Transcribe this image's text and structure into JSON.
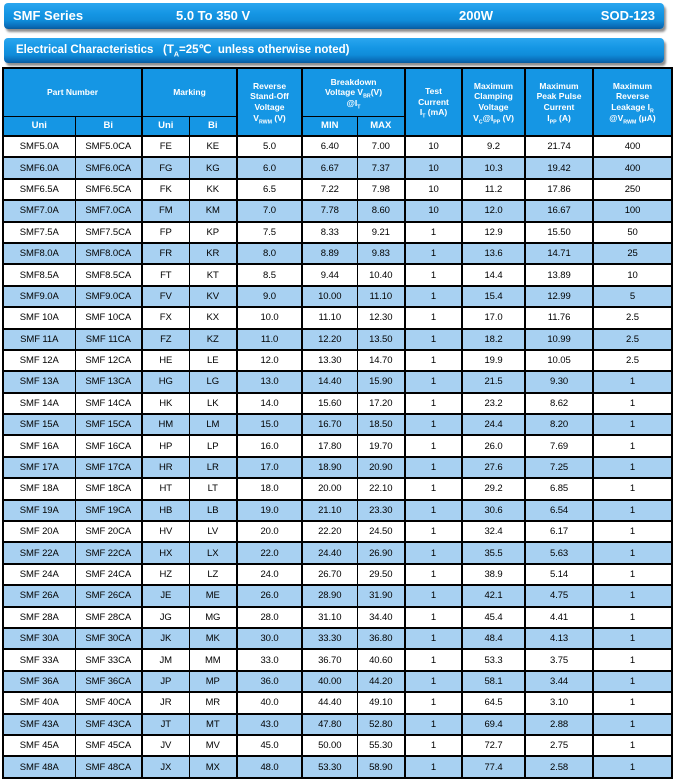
{
  "colors": {
    "accent": "#1596e4",
    "row_highlight": "#a8d1f2",
    "border": "#000000",
    "header_text": "#ffffff",
    "cell_text": "#000000"
  },
  "title_bar": {
    "series": "SMF Series",
    "voltage_range": "5.0 To 350 V",
    "power": "200W",
    "package": "SOD-123"
  },
  "section_bar": {
    "text": "Electrical Characteristics   (T_{A}=25℃  unless otherwise noted)"
  },
  "table": {
    "group_headers": {
      "part_number": "Part Number",
      "marking": "Marking",
      "vrwm": "Reverse\nStand-Off\nVoltage\nV_{RWM} (V)",
      "breakdown": "Breakdown\nVoltage V_{BR}(V)\n@I_{T}",
      "test_current": "Test\nCurrent\nI_{T} (mA)",
      "clamping": "Maximum\nClamping\nVoltage\nV_{C}@I_{PP} (V)",
      "peak_pulse": "Maximum\nPeak Pulse\nCurrent\nI_{PP} (A)",
      "leakage": "Maximum\nReverse\nLeakage I_{R}\n@V_{RWM} (μA)"
    },
    "sub_headers": {
      "part_uni": "Uni",
      "part_bi": "Bi",
      "mark_uni": "Uni",
      "mark_bi": "Bi",
      "min": "MIN",
      "max": "MAX"
    },
    "rows": [
      [
        "SMF5.0A",
        "SMF5.0CA",
        "FE",
        "KE",
        "5.0",
        "6.40",
        "7.00",
        "10",
        "9.2",
        "21.74",
        "400"
      ],
      [
        "SMF6.0A",
        "SMF6.0CA",
        "FG",
        "KG",
        "6.0",
        "6.67",
        "7.37",
        "10",
        "10.3",
        "19.42",
        "400"
      ],
      [
        "SMF6.5A",
        "SMF6.5CA",
        "FK",
        "KK",
        "6.5",
        "7.22",
        "7.98",
        "10",
        "11.2",
        "17.86",
        "250"
      ],
      [
        "SMF7.0A",
        "SMF7.0CA",
        "FM",
        "KM",
        "7.0",
        "7.78",
        "8.60",
        "10",
        "12.0",
        "16.67",
        "100"
      ],
      [
        "SMF7.5A",
        "SMF7.5CA",
        "FP",
        "KP",
        "7.5",
        "8.33",
        "9.21",
        "1",
        "12.9",
        "15.50",
        "50"
      ],
      [
        "SMF8.0A",
        "SMF8.0CA",
        "FR",
        "KR",
        "8.0",
        "8.89",
        "9.83",
        "1",
        "13.6",
        "14.71",
        "25"
      ],
      [
        "SMF8.5A",
        "SMF8.5CA",
        "FT",
        "KT",
        "8.5",
        "9.44",
        "10.40",
        "1",
        "14.4",
        "13.89",
        "10"
      ],
      [
        "SMF9.0A",
        "SMF9.0CA",
        "FV",
        "KV",
        "9.0",
        "10.00",
        "11.10",
        "1",
        "15.4",
        "12.99",
        "5"
      ],
      [
        "SMF 10A",
        "SMF 10CA",
        "FX",
        "KX",
        "10.0",
        "11.10",
        "12.30",
        "1",
        "17.0",
        "11.76",
        "2.5"
      ],
      [
        "SMF 11A",
        "SMF 11CA",
        "FZ",
        "KZ",
        "11.0",
        "12.20",
        "13.50",
        "1",
        "18.2",
        "10.99",
        "2.5"
      ],
      [
        "SMF 12A",
        "SMF 12CA",
        "HE",
        "LE",
        "12.0",
        "13.30",
        "14.70",
        "1",
        "19.9",
        "10.05",
        "2.5"
      ],
      [
        "SMF 13A",
        "SMF 13CA",
        "HG",
        "LG",
        "13.0",
        "14.40",
        "15.90",
        "1",
        "21.5",
        "9.30",
        "1"
      ],
      [
        "SMF 14A",
        "SMF 14CA",
        "HK",
        "LK",
        "14.0",
        "15.60",
        "17.20",
        "1",
        "23.2",
        "8.62",
        "1"
      ],
      [
        "SMF 15A",
        "SMF 15CA",
        "HM",
        "LM",
        "15.0",
        "16.70",
        "18.50",
        "1",
        "24.4",
        "8.20",
        "1"
      ],
      [
        "SMF 16A",
        "SMF 16CA",
        "HP",
        "LP",
        "16.0",
        "17.80",
        "19.70",
        "1",
        "26.0",
        "7.69",
        "1"
      ],
      [
        "SMF 17A",
        "SMF 17CA",
        "HR",
        "LR",
        "17.0",
        "18.90",
        "20.90",
        "1",
        "27.6",
        "7.25",
        "1"
      ],
      [
        "SMF 18A",
        "SMF 18CA",
        "HT",
        "LT",
        "18.0",
        "20.00",
        "22.10",
        "1",
        "29.2",
        "6.85",
        "1"
      ],
      [
        "SMF 19A",
        "SMF 19CA",
        "HB",
        "LB",
        "19.0",
        "21.10",
        "23.30",
        "1",
        "30.6",
        "6.54",
        "1"
      ],
      [
        "SMF 20A",
        "SMF 20CA",
        "HV",
        "LV",
        "20.0",
        "22.20",
        "24.50",
        "1",
        "32.4",
        "6.17",
        "1"
      ],
      [
        "SMF 22A",
        "SMF 22CA",
        "HX",
        "LX",
        "22.0",
        "24.40",
        "26.90",
        "1",
        "35.5",
        "5.63",
        "1"
      ],
      [
        "SMF 24A",
        "SMF 24CA",
        "HZ",
        "LZ",
        "24.0",
        "26.70",
        "29.50",
        "1",
        "38.9",
        "5.14",
        "1"
      ],
      [
        "SMF 26A",
        "SMF 26CA",
        "JE",
        "ME",
        "26.0",
        "28.90",
        "31.90",
        "1",
        "42.1",
        "4.75",
        "1"
      ],
      [
        "SMF 28A",
        "SMF 28CA",
        "JG",
        "MG",
        "28.0",
        "31.10",
        "34.40",
        "1",
        "45.4",
        "4.41",
        "1"
      ],
      [
        "SMF 30A",
        "SMF 30CA",
        "JK",
        "MK",
        "30.0",
        "33.30",
        "36.80",
        "1",
        "48.4",
        "4.13",
        "1"
      ],
      [
        "SMF 33A",
        "SMF 33CA",
        "JM",
        "MM",
        "33.0",
        "36.70",
        "40.60",
        "1",
        "53.3",
        "3.75",
        "1"
      ],
      [
        "SMF 36A",
        "SMF 36CA",
        "JP",
        "MP",
        "36.0",
        "40.00",
        "44.20",
        "1",
        "58.1",
        "3.44",
        "1"
      ],
      [
        "SMF 40A",
        "SMF 40CA",
        "JR",
        "MR",
        "40.0",
        "44.40",
        "49.10",
        "1",
        "64.5",
        "3.10",
        "1"
      ],
      [
        "SMF 43A",
        "SMF 43CA",
        "JT",
        "MT",
        "43.0",
        "47.80",
        "52.80",
        "1",
        "69.4",
        "2.88",
        "1"
      ],
      [
        "SMF 45A",
        "SMF 45CA",
        "JV",
        "MV",
        "45.0",
        "50.00",
        "55.30",
        "1",
        "72.7",
        "2.75",
        "1"
      ],
      [
        "SMF 48A",
        "SMF 48CA",
        "JX",
        "MX",
        "48.0",
        "53.30",
        "58.90",
        "1",
        "77.4",
        "2.58",
        "1"
      ]
    ]
  }
}
